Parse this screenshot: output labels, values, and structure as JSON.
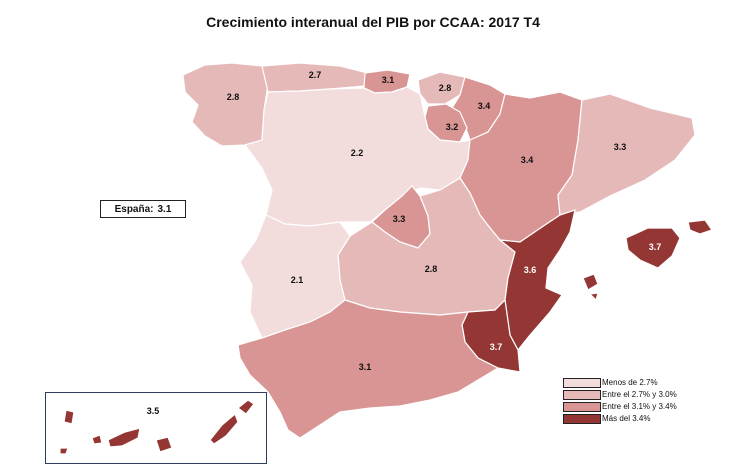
{
  "title": "Crecimiento interanual del PIB por CCAA: 2017 T4",
  "national": {
    "label": "España:",
    "value": "3.1"
  },
  "colors": {
    "cat1": "#f2dcdc",
    "cat2": "#e6b9b9",
    "cat3": "#d99494",
    "cat4": "#943634"
  },
  "legend": [
    {
      "label": "Menos de 2.7%",
      "color": "#f2dcdc"
    },
    {
      "label": "Entre el 2.7% y 3.0%",
      "color": "#e6b9b9"
    },
    {
      "label": "Entre el 3.1% y 3.4%",
      "color": "#d99494"
    },
    {
      "label": "Más del 3.4%",
      "color": "#943634"
    }
  ],
  "regions": {
    "galicia": "2.8",
    "asturias": "2.7",
    "cantabria": "3.1",
    "pais_vasco": "2.8",
    "navarra": "3.4",
    "la_rioja": "3.2",
    "aragon": "3.4",
    "cataluna": "3.3",
    "castilla_leon": "2.2",
    "madrid": "3.3",
    "castilla_la_mancha": "2.8",
    "extremadura": "2.1",
    "valencia": "3.6",
    "baleares": "3.7",
    "murcia": "3.7",
    "andalucia": "3.1",
    "canarias": "3.5"
  }
}
